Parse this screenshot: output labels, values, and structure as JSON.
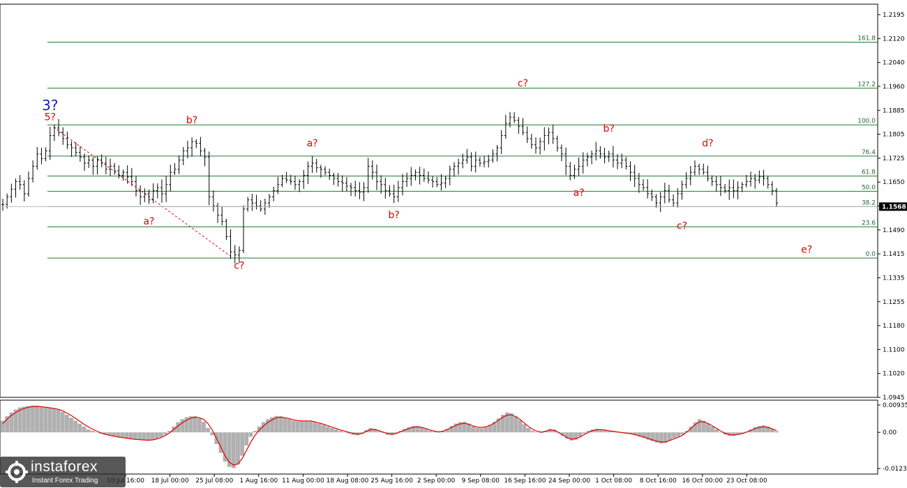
{
  "chart_data": [
    {
      "type": "line",
      "title": "",
      "y_ticks": [
        "1.2195",
        "1.2120",
        "1.2040",
        "1.1960",
        "1.1885",
        "1.1805",
        "1.1725",
        "1.1650",
        "1.1570",
        "1.1490",
        "1.1415",
        "1.1335",
        "1.1255",
        "1.1180",
        "1.1100",
        "1.1020",
        "1.0945"
      ],
      "x_labels": [
        "10 Jul 16:00",
        "18 Jul 00:00",
        "25 Jul 08:00",
        "1 Aug 16:00",
        "11 Aug 00:00",
        "18 Aug 08:00",
        "25 Aug 16:00",
        "2 Sep 00:00",
        "9 Sep 08:00",
        "16 Sep 16:00",
        "24 Sep 00:00",
        "1 Oct 08:00",
        "8 Oct 16:00",
        "16 Oct 00:00",
        "23 Oct 08:00"
      ],
      "current_price": "1.1568",
      "ylim": [
        1.0945,
        1.2195
      ],
      "fib_levels": [
        {
          "label": "161.8",
          "value": 1.2105
        },
        {
          "label": "127.2",
          "value": 1.1955
        },
        {
          "label": "100.0",
          "value": 1.1835
        },
        {
          "label": "76.4",
          "value": 1.1733
        },
        {
          "label": "61.8",
          "value": 1.1668
        },
        {
          "label": "50.0",
          "value": 1.1618
        },
        {
          "label": "38.2",
          "value": 1.1568
        },
        {
          "label": "23.6",
          "value": 1.1502
        },
        {
          "label": "0.0",
          "value": 1.14
        }
      ],
      "wave_labels": [
        {
          "text": "3?",
          "bar": 11,
          "price": 1.1883,
          "big": true
        },
        {
          "text": "5?",
          "bar": 11,
          "price": 1.185
        },
        {
          "text": "a?",
          "bar": 34,
          "price": 1.151
        },
        {
          "text": "b?",
          "bar": 44,
          "price": 1.184
        },
        {
          "text": "c?",
          "bar": 55,
          "price": 1.1365
        },
        {
          "text": "a?",
          "bar": 72,
          "price": 1.1765
        },
        {
          "text": "b?",
          "bar": 91,
          "price": 1.153
        },
        {
          "text": "c?",
          "bar": 121,
          "price": 1.196
        },
        {
          "text": "a?",
          "bar": 134,
          "price": 1.1603
        },
        {
          "text": "b?",
          "bar": 141,
          "price": 1.1812
        },
        {
          "text": "c?",
          "bar": 158,
          "price": 1.1495
        },
        {
          "text": "d?",
          "bar": 164,
          "price": 1.1765
        },
        {
          "text": "e?",
          "bar": 187,
          "price": 1.1418
        }
      ],
      "series": [
        {
          "values": [
            1.1575,
            1.16,
            1.1625,
            1.165,
            1.164,
            1.161,
            1.166,
            1.17,
            1.174,
            1.1725,
            1.175,
            1.18,
            1.1825,
            1.181,
            1.179,
            1.177,
            1.176,
            1.1745,
            1.173,
            1.171,
            1.172,
            1.17,
            1.172,
            1.171,
            1.169,
            1.17,
            1.1685,
            1.167,
            1.168,
            1.1665,
            1.165,
            1.162,
            1.16,
            1.161,
            1.159,
            1.162,
            1.163,
            1.161,
            1.164,
            1.168,
            1.169,
            1.172,
            1.175,
            1.176,
            1.178,
            1.1775,
            1.175,
            1.173,
            1.16,
            1.157,
            1.154,
            1.152,
            1.147,
            1.142,
            1.141,
            1.1425,
            1.156,
            1.159,
            1.158,
            1.157,
            1.156,
            1.158,
            1.16,
            1.162,
            1.164,
            1.166,
            1.1655,
            1.165,
            1.164,
            1.165,
            1.167,
            1.17,
            1.171,
            1.1695,
            1.169,
            1.168,
            1.167,
            1.166,
            1.165,
            1.1645,
            1.1635,
            1.163,
            1.162,
            1.1615,
            1.163,
            1.17,
            1.168,
            1.165,
            1.164,
            1.162,
            1.161,
            1.16,
            1.163,
            1.165,
            1.166,
            1.167,
            1.168,
            1.167,
            1.166,
            1.1655,
            1.165,
            1.164,
            1.1645,
            1.166,
            1.169,
            1.17,
            1.171,
            1.172,
            1.173,
            1.17,
            1.172,
            1.171,
            1.1715,
            1.172,
            1.174,
            1.176,
            1.18,
            1.184,
            1.186,
            1.185,
            1.183,
            1.181,
            1.179,
            1.177,
            1.176,
            1.178,
            1.18,
            1.181,
            1.179,
            1.176,
            1.174,
            1.17,
            1.167,
            1.169,
            1.17,
            1.172,
            1.173,
            1.174,
            1.175,
            1.174,
            1.173,
            1.174,
            1.172,
            1.171,
            1.172,
            1.17,
            1.168,
            1.166,
            1.164,
            1.163,
            1.161,
            1.16,
            1.158,
            1.16,
            1.162,
            1.159,
            1.158,
            1.161,
            1.164,
            1.166,
            1.168,
            1.17,
            1.169,
            1.168,
            1.166,
            1.165,
            1.164,
            1.163,
            1.162,
            1.163,
            1.162,
            1.163,
            1.164,
            1.165,
            1.166,
            1.1655,
            1.1665,
            1.166,
            1.164,
            1.162,
            1.158
          ]
        }
      ]
    },
    {
      "type": "area",
      "title": "",
      "y_ticks": [
        "0.00935",
        "0.00",
        "-0.01236"
      ],
      "ylim": [
        -0.01236,
        0.00935
      ],
      "series": [
        {
          "values": [
            0.004,
            0.0055,
            0.0068,
            0.0078,
            0.0085,
            0.0088,
            0.009,
            0.0092,
            0.0091,
            0.0088,
            0.0085,
            0.0083,
            0.0082,
            0.0078,
            0.007,
            0.006,
            0.005,
            0.004,
            0.003,
            0.002,
            0.001,
            0.0005,
            0.0,
            -0.0005,
            -0.0008,
            -0.001,
            -0.0012,
            -0.0015,
            -0.0018,
            -0.002,
            -0.0022,
            -0.0025,
            -0.0026,
            -0.0027,
            -0.0028,
            -0.0026,
            -0.0022,
            -0.0016,
            -0.0008,
            0.0005,
            0.002,
            0.0035,
            0.0045,
            0.0052,
            0.0055,
            0.0055,
            0.0048,
            0.0036,
            0.0015,
            -0.001,
            -0.004,
            -0.007,
            -0.01,
            -0.0118,
            -0.0122,
            -0.011,
            -0.008,
            -0.0045,
            -0.0015,
            0.0005,
            0.002,
            0.0035,
            0.0045,
            0.0052,
            0.0056,
            0.0055,
            0.005,
            0.0045,
            0.004,
            0.0038,
            0.0038,
            0.004,
            0.004,
            0.0035,
            0.003,
            0.0025,
            0.002,
            0.0015,
            0.001,
            0.0005,
            0.0,
            -0.0004,
            -0.0008,
            -0.001,
            -0.0005,
            0.0008,
            0.0015,
            0.0012,
            0.0005,
            -0.0002,
            -0.0008,
            -0.001,
            -0.0005,
            0.0005,
            0.0012,
            0.0018,
            0.0022,
            0.0022,
            0.0018,
            0.0012,
            0.0006,
            0.0002,
            0.0,
            0.0004,
            0.0012,
            0.0022,
            0.003,
            0.0035,
            0.0036,
            0.003,
            0.002,
            0.0015,
            0.0014,
            0.0018,
            0.0026,
            0.0036,
            0.0048,
            0.006,
            0.0068,
            0.0065,
            0.0055,
            0.0042,
            0.0028,
            0.0015,
            0.0005,
            0.0,
            -0.0002,
            0.0005,
            0.0012,
            0.001,
            0.0,
            -0.0012,
            -0.0022,
            -0.0028,
            -0.0025,
            -0.0015,
            -0.0005,
            0.0005,
            0.001,
            0.0012,
            0.001,
            0.0008,
            0.0004,
            0.0002,
            0.0,
            -0.0002,
            -0.0004,
            -0.0006,
            -0.001,
            -0.0015,
            -0.002,
            -0.0025,
            -0.003,
            -0.0035,
            -0.0038,
            -0.0036,
            -0.0028,
            -0.002,
            -0.0015,
            -0.0008,
            0.0005,
            0.002,
            0.0035,
            0.0045,
            0.004,
            0.003,
            0.002,
            0.001,
            0.0,
            -0.0008,
            -0.0012,
            -0.0012,
            -0.0008,
            -0.0005,
            0.0002,
            0.001,
            0.0018,
            0.0022,
            0.0024,
            0.002,
            0.0012,
            0.0004
          ]
        },
        {
          "values": [
            0.003,
            0.0045,
            0.0058,
            0.0068,
            0.0076,
            0.0082,
            0.0086,
            0.0088,
            0.0089,
            0.0088,
            0.0086,
            0.0084,
            0.0082,
            0.0079,
            0.0074,
            0.0066,
            0.0058,
            0.0048,
            0.0038,
            0.0028,
            0.0019,
            0.0011,
            0.0004,
            -0.0002,
            -0.0007,
            -0.001,
            -0.0013,
            -0.0016,
            -0.0018,
            -0.002,
            -0.0022,
            -0.0024,
            -0.0025,
            -0.0026,
            -0.0027,
            -0.0026,
            -0.0023,
            -0.0018,
            -0.0011,
            -0.0002,
            0.001,
            0.0022,
            0.0033,
            0.0042,
            0.0049,
            0.0052,
            0.005,
            0.0044,
            0.003,
            0.0008,
            -0.002,
            -0.005,
            -0.008,
            -0.0102,
            -0.0112,
            -0.0108,
            -0.009,
            -0.0062,
            -0.0034,
            -0.001,
            0.0008,
            0.0022,
            0.0034,
            0.0043,
            0.005,
            0.0052,
            0.005,
            0.0047,
            0.0043,
            0.004,
            0.0039,
            0.0039,
            0.0039,
            0.0036,
            0.0032,
            0.0028,
            0.0023,
            0.0018,
            0.0013,
            0.0008,
            0.0004,
            0.0,
            -0.0004,
            -0.0006,
            -0.0004,
            0.0003,
            0.0009,
            0.001,
            0.0006,
            0.0001,
            -0.0004,
            -0.0006,
            -0.0004,
            0.0002,
            0.0008,
            0.0013,
            0.0017,
            0.0019,
            0.0017,
            0.0013,
            0.0008,
            0.0004,
            0.0002,
            0.0004,
            0.001,
            0.0017,
            0.0024,
            0.0029,
            0.0031,
            0.0028,
            0.0022,
            0.0018,
            0.0017,
            0.0019,
            0.0024,
            0.0032,
            0.0042,
            0.0052,
            0.0059,
            0.006,
            0.0054,
            0.0044,
            0.0032,
            0.002,
            0.001,
            0.0004,
            0.0001,
            0.0004,
            0.0008,
            0.0007,
            0.0,
            -0.0009,
            -0.0018,
            -0.0023,
            -0.0022,
            -0.0016,
            -0.0008,
            0.0,
            0.0006,
            0.0009,
            0.0009,
            0.0008,
            0.0005,
            0.0003,
            0.0001,
            -0.0001,
            -0.0003,
            -0.0005,
            -0.0008,
            -0.0012,
            -0.0016,
            -0.0021,
            -0.0026,
            -0.003,
            -0.0033,
            -0.0033,
            -0.0028,
            -0.0022,
            -0.0017,
            -0.001,
            0.0001,
            0.0014,
            0.0027,
            0.0036,
            0.0036,
            0.003,
            0.0022,
            0.0013,
            0.0004,
            -0.0003,
            -0.0008,
            -0.0009,
            -0.0007,
            -0.0004,
            0.0001,
            0.0007,
            0.0013,
            0.0017,
            0.0019,
            0.0017,
            0.0012,
            0.0006
          ]
        }
      ]
    }
  ],
  "logo": {
    "brand": "instaforex",
    "tagline": "Instant Forex Trading"
  }
}
